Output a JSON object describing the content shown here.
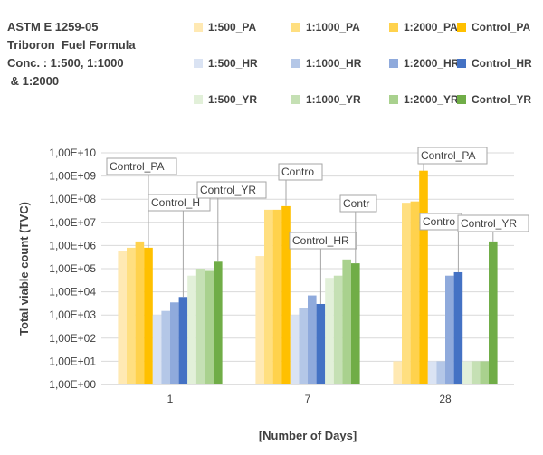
{
  "chart_data": {
    "type": "bar",
    "title_lines": [
      "ASTM E 1259-05",
      "Triboron  Fuel Formula",
      "Conc. : 1:500, 1:1000",
      " & 1:2000"
    ],
    "xlabel": "[Number of Days]",
    "ylabel": "Total viable count (TVC)",
    "yscale": "log",
    "ylim": [
      1,
      10000000000
    ],
    "yticks": [
      "1,00E+00",
      "1,00E+01",
      "1,00E+02",
      "1,00E+03",
      "1,00E+04",
      "1,00E+05",
      "1,00E+06",
      "1,00E+07",
      "1,00E+08",
      "1,00E+09",
      "1,00E+10"
    ],
    "categories": [
      "1",
      "7",
      "28"
    ],
    "grid": true,
    "legend_position": "top",
    "series": [
      {
        "name": "1:500_PA",
        "color": "#ffe9b3",
        "values": [
          600000,
          350000,
          10
        ]
      },
      {
        "name": "1:1000_PA",
        "color": "#ffdf80",
        "values": [
          800000,
          35000000,
          70000000
        ]
      },
      {
        "name": "1:2000_PA",
        "color": "#ffd24d",
        "values": [
          1500000,
          35000000,
          80000000
        ]
      },
      {
        "name": "Control_PA",
        "color": "#ffc000",
        "values": [
          800000,
          50000000,
          1700000000
        ]
      },
      {
        "name": "1:500_HR",
        "color": "#dae3f3",
        "values": [
          1000,
          1000,
          10
        ]
      },
      {
        "name": "1:1000_HR",
        "color": "#b4c7e7",
        "values": [
          1500,
          2000,
          10
        ]
      },
      {
        "name": "1:2000_HR",
        "color": "#8faadc",
        "values": [
          3500,
          7000,
          50000
        ]
      },
      {
        "name": "Control_HR",
        "color": "#4472c4",
        "values": [
          6000,
          3000,
          70000
        ]
      },
      {
        "name": "1:500_YR",
        "color": "#e2f0d9",
        "values": [
          50000,
          40000,
          10
        ]
      },
      {
        "name": "1:1000_YR",
        "color": "#c5e0b4",
        "values": [
          100000,
          50000,
          10
        ]
      },
      {
        "name": "1:2000_YR",
        "color": "#a9d18e",
        "values": [
          80000,
          250000,
          10
        ]
      },
      {
        "name": "Control_YR",
        "color": "#70ad47",
        "values": [
          200000,
          170000,
          1500000
        ]
      }
    ],
    "callouts": [
      {
        "text": "Control_PA",
        "series": 3,
        "category": 0
      },
      {
        "text": "Control_H",
        "series": 7,
        "category": 0
      },
      {
        "text": "Control_YR",
        "series": 11,
        "category": 0
      },
      {
        "text": "Contro",
        "series": 3,
        "category": 1
      },
      {
        "text": "Control_HR",
        "series": 7,
        "category": 1
      },
      {
        "text": "Contr",
        "series": 11,
        "category": 1
      },
      {
        "text": "Control_PA",
        "series": 3,
        "category": 2
      },
      {
        "text": "Contro",
        "series": 7,
        "category": 2
      },
      {
        "text": "Control_YR",
        "series": 11,
        "category": 2
      }
    ]
  }
}
